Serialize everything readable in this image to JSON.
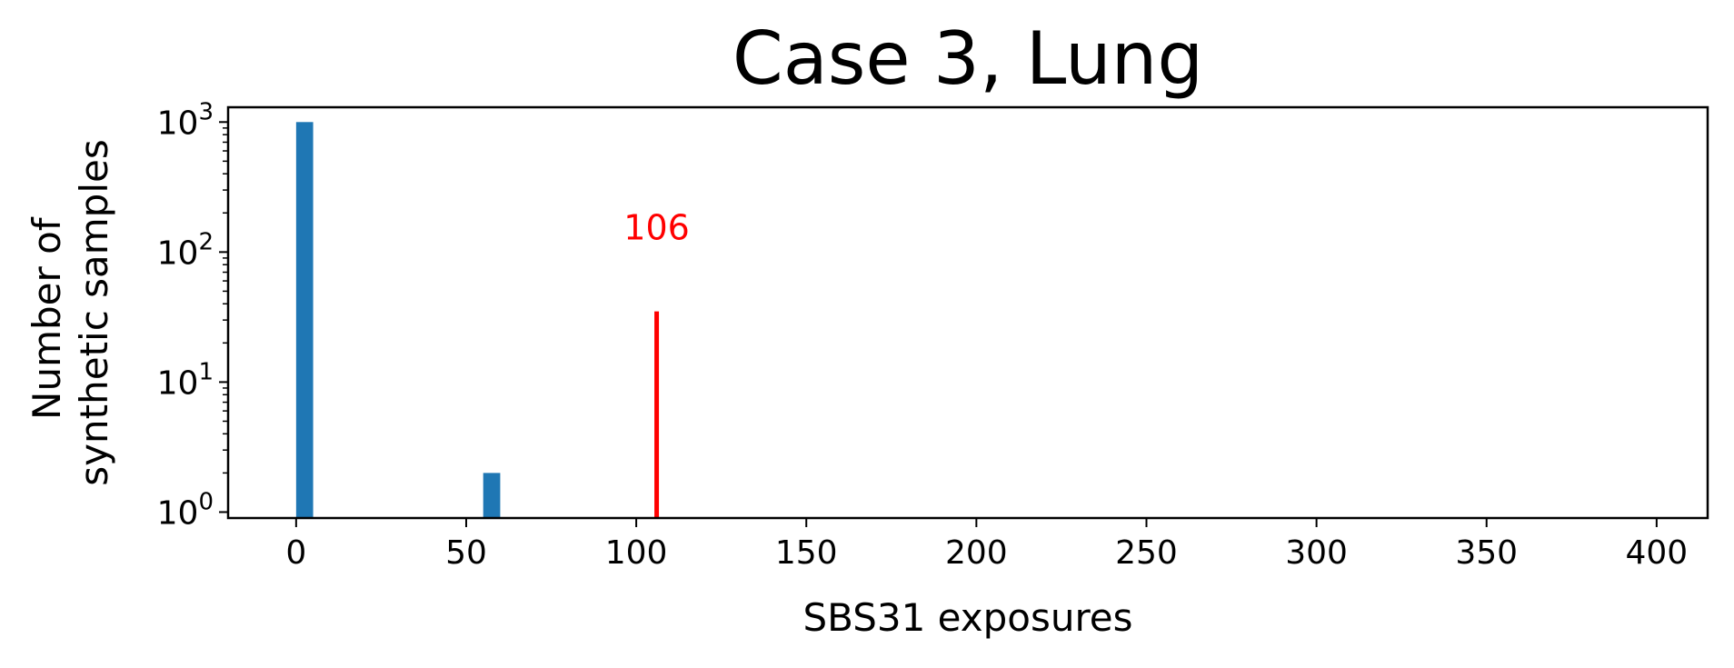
{
  "chart_data": {
    "type": "bar",
    "title": "Case 3, Lung",
    "xlabel": "SBS31 exposures",
    "ylabel": [
      "Number of",
      "synthetic samples"
    ],
    "xlim": [
      -20,
      415
    ],
    "ylim": [
      0.9,
      1300
    ],
    "yscale": "log",
    "xticks": [
      0,
      50,
      100,
      150,
      200,
      250,
      300,
      350,
      400
    ],
    "yticks": [
      {
        "value": 1,
        "base": "10",
        "exp": "0"
      },
      {
        "value": 10,
        "base": "10",
        "exp": "1"
      },
      {
        "value": 100,
        "base": "10",
        "exp": "2"
      },
      {
        "value": 1000,
        "base": "10",
        "exp": "3"
      }
    ],
    "bar_width": 5,
    "bars": [
      {
        "x": 2.5,
        "value": 1000
      },
      {
        "x": 57.5,
        "value": 2
      }
    ],
    "bar_color": "#1f77b4",
    "reference": {
      "x": 106,
      "label": "106",
      "top_value": 35,
      "color": "#ff0000"
    },
    "grid": false,
    "legend": "none"
  }
}
